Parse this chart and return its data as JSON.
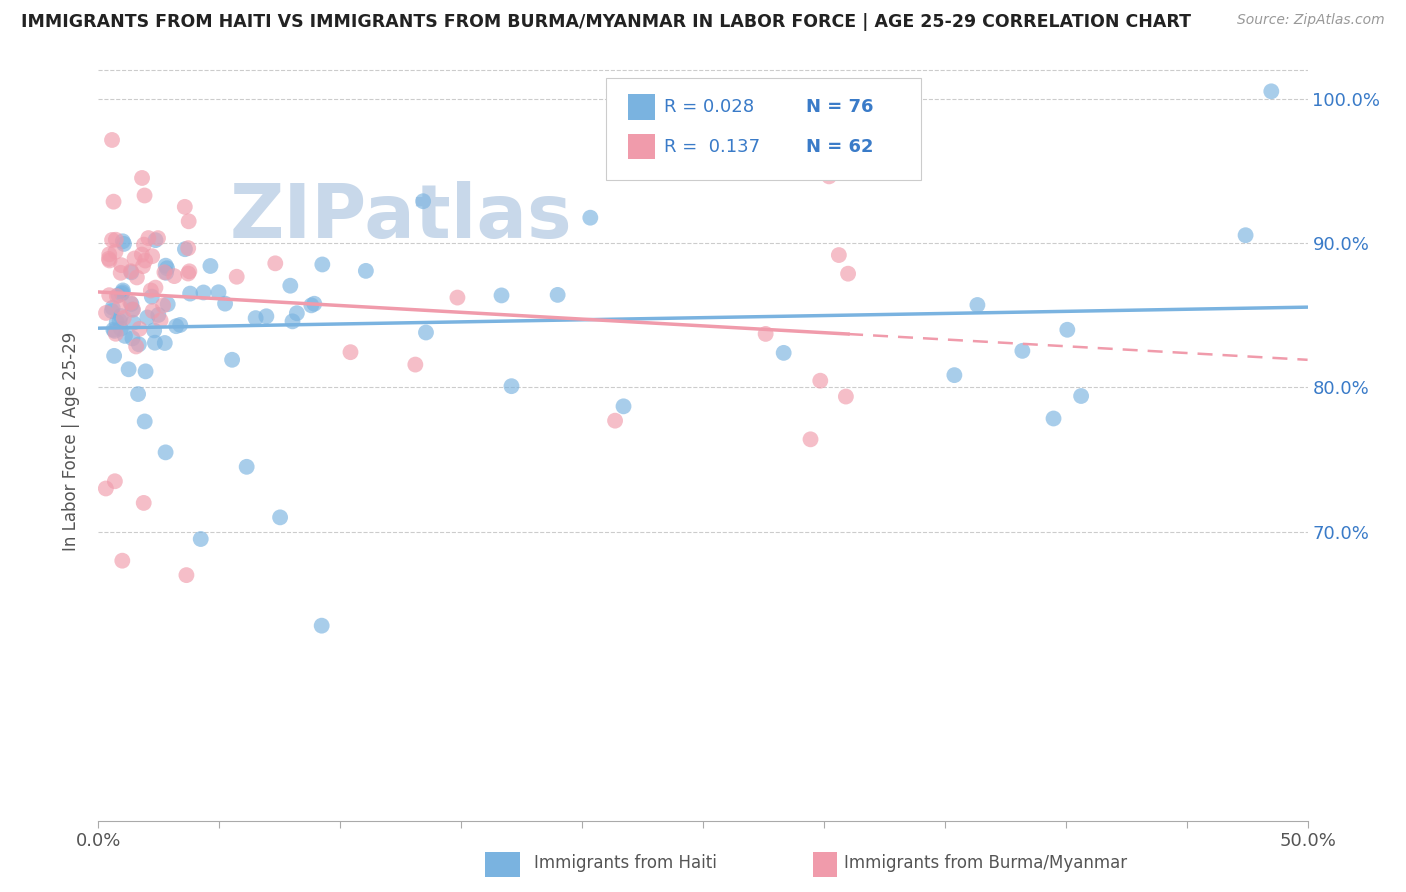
{
  "title": "IMMIGRANTS FROM HAITI VS IMMIGRANTS FROM BURMA/MYANMAR IN LABOR FORCE | AGE 25-29 CORRELATION CHART",
  "source": "Source: ZipAtlas.com",
  "xlabel_haiti": "Immigrants from Haiti",
  "xlabel_burma": "Immigrants from Burma/Myanmar",
  "ylabel": "In Labor Force | Age 25-29",
  "xmin": 0.0,
  "xmax": 0.5,
  "ymin": 0.5,
  "ymax": 1.025,
  "ytick_vals": [
    0.7,
    0.8,
    0.9,
    1.0
  ],
  "ytick_labels": [
    "70.0%",
    "80.0%",
    "90.0%",
    "100.0%"
  ],
  "haiti_color": "#7ab3e0",
  "burma_color": "#f09bab",
  "haiti_R": 0.028,
  "haiti_N": 76,
  "burma_R": 0.137,
  "burma_N": 62,
  "watermark": "ZIPatlas",
  "watermark_color": "#c8d8ea",
  "legend_text_color": "#3a7bc8",
  "background_color": "#ffffff",
  "grid_color": "#cccccc",
  "title_color": "#222222",
  "source_color": "#999999",
  "axis_label_color": "#555555",
  "tick_color": "#aaaaaa"
}
